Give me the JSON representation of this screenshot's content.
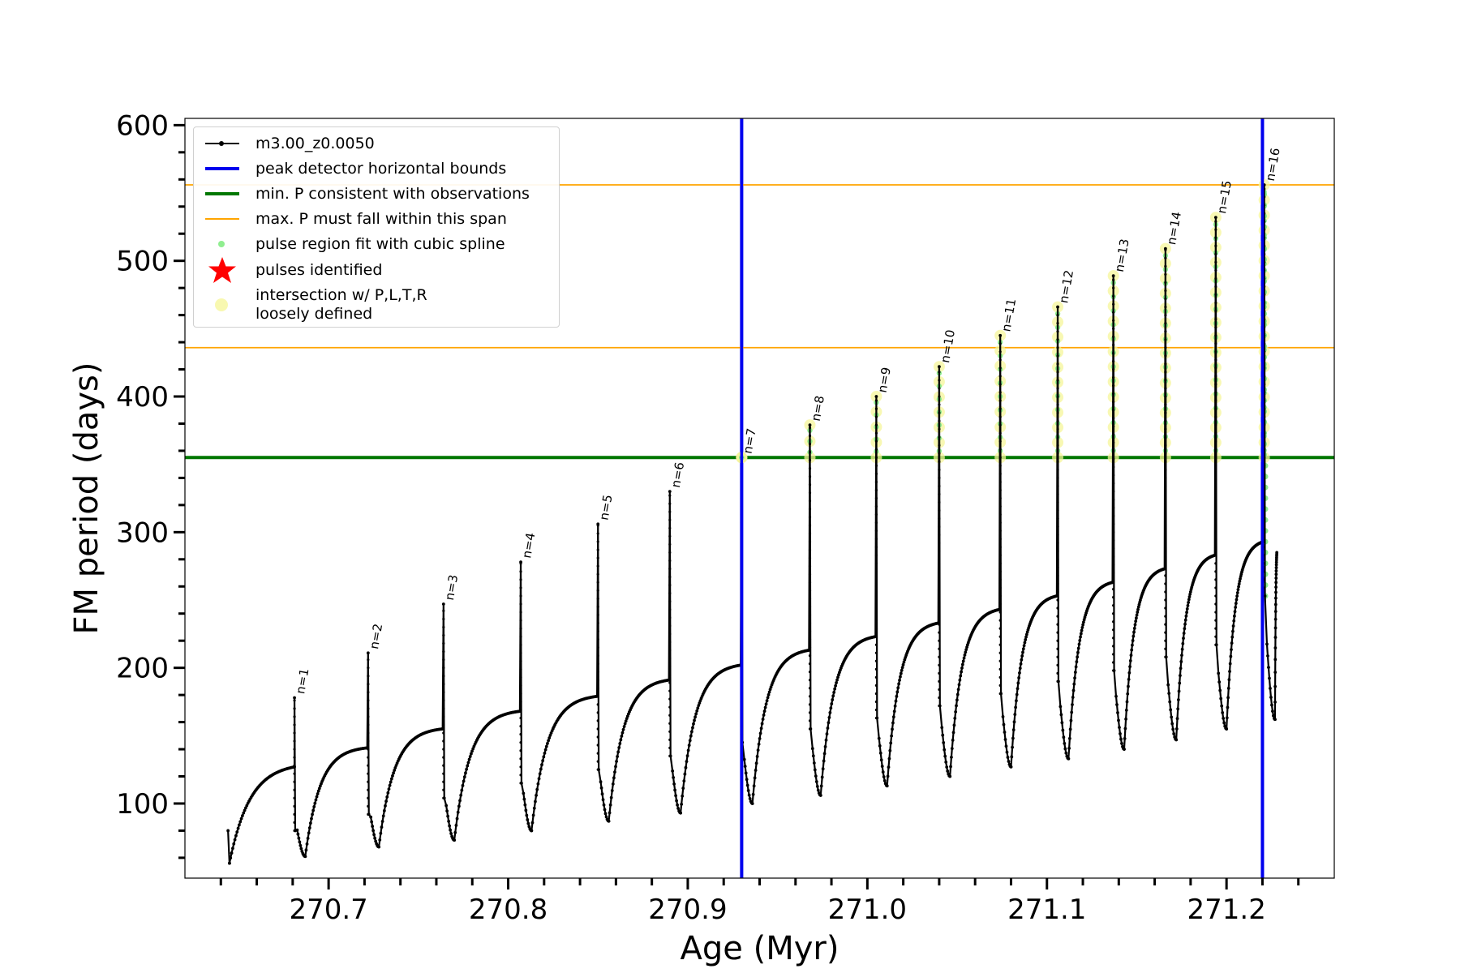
{
  "chart_data": {
    "type": "line",
    "title": "",
    "xlabel": "Age (Myr)",
    "ylabel": "FM period (days)",
    "xlim": [
      270.62,
      271.26
    ],
    "ylim": [
      45,
      605
    ],
    "xticks": [
      270.7,
      270.8,
      270.9,
      271.0,
      271.1,
      271.2
    ],
    "xtick_labels": [
      "270.7",
      "270.8",
      "270.9",
      "271.0",
      "271.1",
      "271.2"
    ],
    "yticks": [
      100,
      200,
      300,
      400,
      500,
      600
    ],
    "ytick_labels": [
      "100",
      "200",
      "300",
      "400",
      "500",
      "600"
    ],
    "grid": false,
    "legend_position": "top-left",
    "legend": [
      {
        "label": "m3.00_z0.0050",
        "kind": "line-marker",
        "color": "#000000"
      },
      {
        "label": "peak detector horizontal bounds",
        "kind": "thick-line",
        "color": "#0000ee"
      },
      {
        "label": "min. P consistent with observations",
        "kind": "thick-line",
        "color": "#007700"
      },
      {
        "label": "max. P must fall within this span",
        "kind": "thin-line",
        "color": "#ffa500"
      },
      {
        "label": "pulse region fit with cubic spline",
        "kind": "dot",
        "color": "#90ee90"
      },
      {
        "label": "pulses identified",
        "kind": "star",
        "color": "#ff0000"
      },
      {
        "label": "intersection w/ P,L,T,R\nloosely defined",
        "kind": "halo",
        "color": "#f5f59a"
      }
    ],
    "vertical_lines": [
      {
        "x": 270.93,
        "color": "#0000ee",
        "role": "peak detector horizontal bounds"
      },
      {
        "x": 271.22,
        "color": "#0000ee",
        "role": "peak detector horizontal bounds"
      }
    ],
    "horizontal_lines": [
      {
        "y": 355,
        "color": "#007700",
        "role": "min. P consistent with observations"
      },
      {
        "y": 436,
        "color": "#ffa500",
        "role": "max. P span lower"
      },
      {
        "y": 556,
        "color": "#ffa500",
        "role": "max. P span upper"
      }
    ],
    "series": [
      {
        "name": "m3.00_z0.0050",
        "start": {
          "x": 270.644,
          "y": 80
        },
        "end": {
          "x": 271.228,
          "y": 285
        },
        "pulses": [
          {
            "label": "n=1",
            "x": 270.681,
            "pre_peak": 127,
            "peak": 178,
            "dip": 80,
            "post_min": 61
          },
          {
            "label": "n=2",
            "x": 270.722,
            "pre_peak": 141,
            "peak": 211,
            "dip": 92,
            "post_min": 68
          },
          {
            "label": "n=3",
            "x": 270.764,
            "pre_peak": 155,
            "peak": 247,
            "dip": 104,
            "post_min": 73
          },
          {
            "label": "n=4",
            "x": 270.807,
            "pre_peak": 168,
            "peak": 278,
            "dip": 115,
            "post_min": 80
          },
          {
            "label": "n=5",
            "x": 270.85,
            "pre_peak": 179,
            "peak": 306,
            "dip": 125,
            "post_min": 87
          },
          {
            "label": "n=6",
            "x": 270.89,
            "pre_peak": 191,
            "peak": 330,
            "dip": 135,
            "post_min": 93
          },
          {
            "label": "n=7",
            "x": 270.93,
            "pre_peak": 202,
            "peak": 355,
            "dip": 145,
            "post_min": 100
          },
          {
            "label": "n=8",
            "x": 270.968,
            "pre_peak": 213,
            "peak": 379,
            "dip": 155,
            "post_min": 106
          },
          {
            "label": "n=9",
            "x": 271.005,
            "pre_peak": 223,
            "peak": 400,
            "dip": 163,
            "post_min": 113
          },
          {
            "label": "n=10",
            "x": 271.04,
            "pre_peak": 233,
            "peak": 422,
            "dip": 172,
            "post_min": 120
          },
          {
            "label": "n=11",
            "x": 271.074,
            "pre_peak": 243,
            "peak": 445,
            "dip": 181,
            "post_min": 127
          },
          {
            "label": "n=12",
            "x": 271.106,
            "pre_peak": 253,
            "peak": 466,
            "dip": 190,
            "post_min": 133
          },
          {
            "label": "n=13",
            "x": 271.137,
            "pre_peak": 263,
            "peak": 489,
            "dip": 198,
            "post_min": 140
          },
          {
            "label": "n=14",
            "x": 271.166,
            "pre_peak": 273,
            "peak": 509,
            "dip": 208,
            "post_min": 147
          },
          {
            "label": "n=15",
            "x": 271.194,
            "pre_peak": 283,
            "peak": 532,
            "dip": 217,
            "post_min": 155
          },
          {
            "label": "n=16",
            "x": 271.221,
            "pre_peak": 293,
            "peak": 556,
            "dip": 253,
            "post_min": 162
          }
        ]
      }
    ]
  }
}
